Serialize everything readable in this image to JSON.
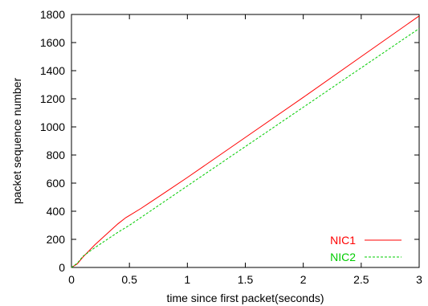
{
  "chart_data": {
    "type": "line",
    "title": "",
    "xlabel": "time since first packet(seconds)",
    "ylabel": "packet sequence number",
    "xlim": [
      0,
      3
    ],
    "ylim": [
      0,
      1800
    ],
    "x_ticks": [
      "0",
      "0.5",
      "1",
      "1.5",
      "2",
      "2.5",
      "3"
    ],
    "y_ticks": [
      "0",
      "200",
      "400",
      "600",
      "800",
      "1000",
      "1200",
      "1400",
      "1600",
      "1800"
    ],
    "grid": false,
    "legend_position": "bottom-right",
    "series": [
      {
        "name": "NIC1",
        "color": "#ff0000",
        "dash": "solid",
        "x": [
          0,
          0.05,
          0.1,
          0.2,
          0.3,
          0.4,
          0.47,
          0.5,
          0.6,
          0.8,
          1.0,
          1.5,
          2.0,
          2.5,
          3.0
        ],
        "y": [
          0,
          25,
          75,
          160,
          235,
          310,
          355,
          370,
          420,
          530,
          640,
          925,
          1210,
          1500,
          1790
        ]
      },
      {
        "name": "NIC2",
        "color": "#00cc00",
        "dash": "dashed",
        "x": [
          0,
          0.05,
          0.1,
          0.2,
          0.3,
          0.4,
          0.5,
          1.0,
          1.5,
          2.0,
          2.5,
          3.0
        ],
        "y": [
          0,
          30,
          80,
          140,
          195,
          250,
          300,
          580,
          860,
          1140,
          1420,
          1700
        ]
      }
    ]
  }
}
